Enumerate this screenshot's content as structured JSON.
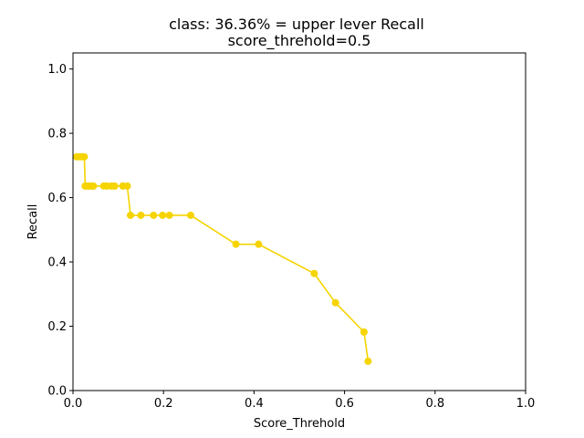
{
  "chart_data": {
    "type": "line",
    "title": "class: 36.36% = upper lever Recall",
    "subtitle": "score_threhold=0.5",
    "xlabel": "Score_Threhold",
    "ylabel": "Recall",
    "xlim": [
      0.0,
      1.0
    ],
    "ylim": [
      0.0,
      1.05
    ],
    "xticks": [
      "0.0",
      "0.2",
      "0.4",
      "0.6",
      "0.8",
      "1.0"
    ],
    "yticks": [
      "0.0",
      "0.2",
      "0.4",
      "0.6",
      "0.8",
      "1.0"
    ],
    "grid": false,
    "series": [
      {
        "color": "#f5d400",
        "marker": "circle",
        "x": [
          0.008,
          0.015,
          0.02,
          0.025,
          0.027,
          0.03,
          0.035,
          0.04,
          0.045,
          0.068,
          0.075,
          0.085,
          0.092,
          0.11,
          0.12,
          0.127,
          0.15,
          0.178,
          0.198,
          0.213,
          0.26,
          0.36,
          0.41,
          0.533,
          0.58,
          0.643,
          0.652
        ],
        "y": [
          0.727,
          0.727,
          0.727,
          0.727,
          0.636,
          0.636,
          0.636,
          0.636,
          0.636,
          0.636,
          0.636,
          0.636,
          0.636,
          0.636,
          0.636,
          0.545,
          0.545,
          0.545,
          0.545,
          0.545,
          0.545,
          0.455,
          0.455,
          0.364,
          0.273,
          0.182,
          0.091
        ]
      }
    ]
  }
}
